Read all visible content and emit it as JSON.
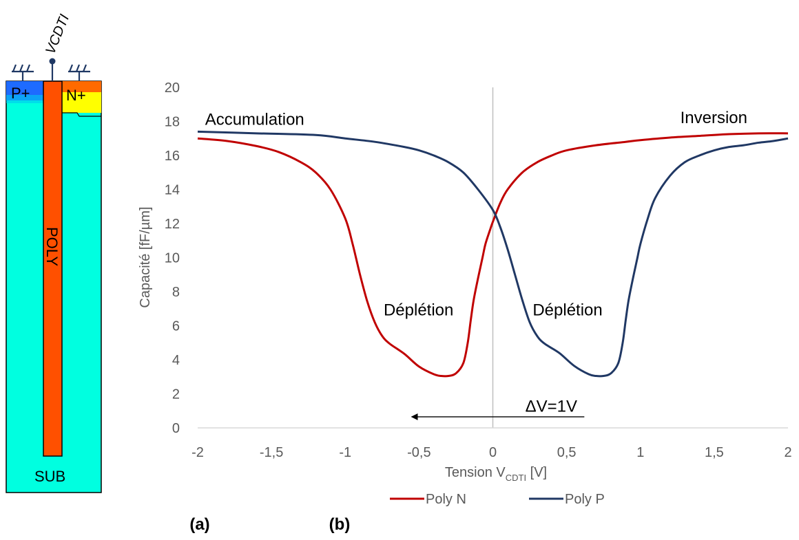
{
  "device": {
    "terminal_label": "VCDTI",
    "p_plus_label": "P+",
    "n_plus_label": "N+",
    "poly_label": "POLY",
    "sub_label": "SUB",
    "colors": {
      "substrate": "#00FFE0",
      "poly": "#FF5000",
      "p_plus": "#1E6BFF",
      "n_plus": "#FFFF00"
    }
  },
  "panels": {
    "a": "(a)",
    "b": "(b)"
  },
  "chart_data": {
    "type": "line",
    "title": "",
    "xlabel": {
      "main": "Tension V",
      "sub": "CDTI",
      "unit": " [V]"
    },
    "ylabel": "Capacité [fF/µm]",
    "xlim": [
      -2,
      2
    ],
    "ylim": [
      0,
      20
    ],
    "x_ticks": [
      "-2",
      "-1,5",
      "-1",
      "-0,5",
      "0",
      "0,5",
      "1",
      "1,5",
      "2"
    ],
    "y_ticks": [
      "0",
      "2",
      "4",
      "6",
      "8",
      "10",
      "12",
      "14",
      "16",
      "18",
      "20"
    ],
    "grid": false,
    "zero_line": true,
    "legend_position": "bottom",
    "series": [
      {
        "name": "Poly N",
        "color": "#C00000",
        "points": [
          [
            -2,
            17.0
          ],
          [
            -1.8,
            16.85
          ],
          [
            -1.6,
            16.55
          ],
          [
            -1.45,
            16.2
          ],
          [
            -1.3,
            15.6
          ],
          [
            -1.2,
            15.0
          ],
          [
            -1.1,
            14.0
          ],
          [
            -1.0,
            12.3
          ],
          [
            -0.95,
            10.8
          ],
          [
            -0.9,
            9.0
          ],
          [
            -0.85,
            7.4
          ],
          [
            -0.8,
            6.2
          ],
          [
            -0.75,
            5.4
          ],
          [
            -0.7,
            4.95
          ],
          [
            -0.6,
            4.35
          ],
          [
            -0.5,
            3.6
          ],
          [
            -0.4,
            3.15
          ],
          [
            -0.35,
            3.05
          ],
          [
            -0.3,
            3.05
          ],
          [
            -0.25,
            3.2
          ],
          [
            -0.2,
            3.8
          ],
          [
            -0.17,
            5.0
          ],
          [
            -0.15,
            6.3
          ],
          [
            -0.13,
            7.5
          ],
          [
            -0.1,
            8.8
          ],
          [
            -0.07,
            10.0
          ],
          [
            -0.05,
            10.8
          ],
          [
            -0.02,
            11.6
          ],
          [
            0,
            12.1
          ],
          [
            0.05,
            13.2
          ],
          [
            0.1,
            14.0
          ],
          [
            0.2,
            15.0
          ],
          [
            0.3,
            15.6
          ],
          [
            0.4,
            16.0
          ],
          [
            0.5,
            16.3
          ],
          [
            0.7,
            16.6
          ],
          [
            0.9,
            16.8
          ],
          [
            1.0,
            16.9
          ],
          [
            1.2,
            17.05
          ],
          [
            1.4,
            17.15
          ],
          [
            1.6,
            17.25
          ],
          [
            1.8,
            17.3
          ],
          [
            2.0,
            17.3
          ]
        ]
      },
      {
        "name": "Poly P",
        "color": "#203864",
        "points": [
          [
            -2,
            17.4
          ],
          [
            -1.6,
            17.3
          ],
          [
            -1.2,
            17.2
          ],
          [
            -1.0,
            17.0
          ],
          [
            -0.8,
            16.8
          ],
          [
            -0.6,
            16.5
          ],
          [
            -0.5,
            16.3
          ],
          [
            -0.4,
            16.0
          ],
          [
            -0.3,
            15.6
          ],
          [
            -0.2,
            15.0
          ],
          [
            -0.1,
            14.0
          ],
          [
            0,
            12.8
          ],
          [
            0.05,
            11.8
          ],
          [
            0.1,
            10.5
          ],
          [
            0.15,
            9.0
          ],
          [
            0.2,
            7.5
          ],
          [
            0.25,
            6.2
          ],
          [
            0.3,
            5.4
          ],
          [
            0.35,
            4.95
          ],
          [
            0.45,
            4.4
          ],
          [
            0.55,
            3.65
          ],
          [
            0.65,
            3.15
          ],
          [
            0.7,
            3.05
          ],
          [
            0.75,
            3.05
          ],
          [
            0.8,
            3.2
          ],
          [
            0.85,
            3.8
          ],
          [
            0.88,
            5.0
          ],
          [
            0.9,
            6.3
          ],
          [
            0.92,
            7.5
          ],
          [
            0.95,
            8.8
          ],
          [
            0.98,
            10.0
          ],
          [
            1.0,
            10.8
          ],
          [
            1.05,
            12.3
          ],
          [
            1.1,
            13.5
          ],
          [
            1.2,
            14.8
          ],
          [
            1.3,
            15.6
          ],
          [
            1.4,
            16.0
          ],
          [
            1.5,
            16.3
          ],
          [
            1.6,
            16.5
          ],
          [
            1.7,
            16.6
          ],
          [
            1.8,
            16.75
          ],
          [
            1.9,
            16.85
          ],
          [
            2.0,
            17.0
          ]
        ]
      }
    ],
    "annotations": [
      {
        "text": "Accumulation",
        "x": -1.95,
        "y": 17.8
      },
      {
        "text": "Inversion",
        "x": 1.27,
        "y": 17.9
      },
      {
        "text": "Déplétion",
        "x": -0.74,
        "y": 6.6
      },
      {
        "text": "Déplétion",
        "x": 0.27,
        "y": 6.6
      },
      {
        "text": "ΔV=1V",
        "x": 0.22,
        "y": 0.95
      }
    ],
    "arrow": {
      "from": [
        0.62,
        0.65
      ],
      "to": [
        -0.55,
        0.65
      ]
    }
  }
}
